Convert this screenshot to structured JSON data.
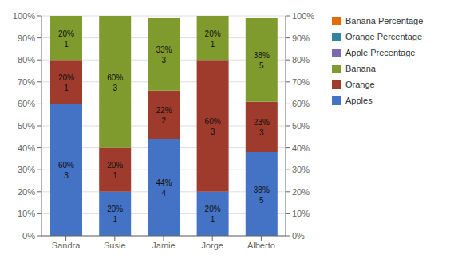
{
  "chart_data": {
    "type": "bar",
    "stacked": true,
    "grid": true,
    "data_labels": true,
    "categories": [
      "Sandra",
      "Susie",
      "Jamie",
      "Jorge",
      "Alberto"
    ],
    "series": [
      {
        "name": "Apples",
        "color": "#4472C4",
        "values": [
          60,
          20,
          44,
          20,
          38
        ],
        "counts": [
          3,
          1,
          4,
          1,
          5
        ]
      },
      {
        "name": "Orange",
        "color": "#9E3B2C",
        "values": [
          20,
          20,
          22,
          60,
          23
        ],
        "counts": [
          1,
          1,
          2,
          3,
          3
        ]
      },
      {
        "name": "Banana",
        "color": "#7F9B2E",
        "values": [
          20,
          60,
          33,
          20,
          38
        ],
        "counts": [
          1,
          3,
          3,
          1,
          5
        ]
      },
      {
        "name": "Apple Precentage",
        "type": "label",
        "color": "#7B68AE",
        "values": [
          60,
          20,
          44,
          20,
          38
        ],
        "value_labels": [
          "60%",
          "20%",
          "44%",
          "20%",
          "38%"
        ]
      },
      {
        "name": "Orange Percentage",
        "type": "label",
        "color": "#31849B",
        "values": [
          20,
          20,
          22,
          60,
          23
        ],
        "value_labels": [
          "20%",
          "20%",
          "22%",
          "60%",
          "23%"
        ]
      },
      {
        "name": "Banana Percentage",
        "type": "label",
        "color": "#E36C09",
        "values": [
          20,
          60,
          33,
          20,
          38
        ],
        "value_labels": [
          "20%",
          "60%",
          "33%",
          "20%",
          "38%"
        ]
      }
    ],
    "ylim": [
      0,
      100
    ],
    "yticks": [
      {
        "value": 0,
        "label": "0%"
      },
      {
        "value": 10,
        "label": "10%"
      },
      {
        "value": 20,
        "label": "20%"
      },
      {
        "value": 30,
        "label": "30%"
      },
      {
        "value": 40,
        "label": "40%"
      },
      {
        "value": 50,
        "label": "50%"
      },
      {
        "value": 60,
        "label": "60%"
      },
      {
        "value": 70,
        "label": "70%"
      },
      {
        "value": 80,
        "label": "80%"
      },
      {
        "value": 90,
        "label": "90%"
      },
      {
        "value": 100,
        "label": "100%"
      }
    ],
    "y2lim": [
      0,
      100
    ],
    "y2ticks": [
      {
        "value": 0,
        "label": "0%"
      },
      {
        "value": 10,
        "label": "10%"
      },
      {
        "value": 20,
        "label": "20%"
      },
      {
        "value": 30,
        "label": "30%"
      },
      {
        "value": 40,
        "label": "40%"
      },
      {
        "value": 50,
        "label": "50%"
      },
      {
        "value": 60,
        "label": "60%"
      },
      {
        "value": 70,
        "label": "70%"
      },
      {
        "value": 80,
        "label": "80%"
      },
      {
        "value": 90,
        "label": "90%"
      },
      {
        "value": 100,
        "label": "100%"
      }
    ]
  }
}
